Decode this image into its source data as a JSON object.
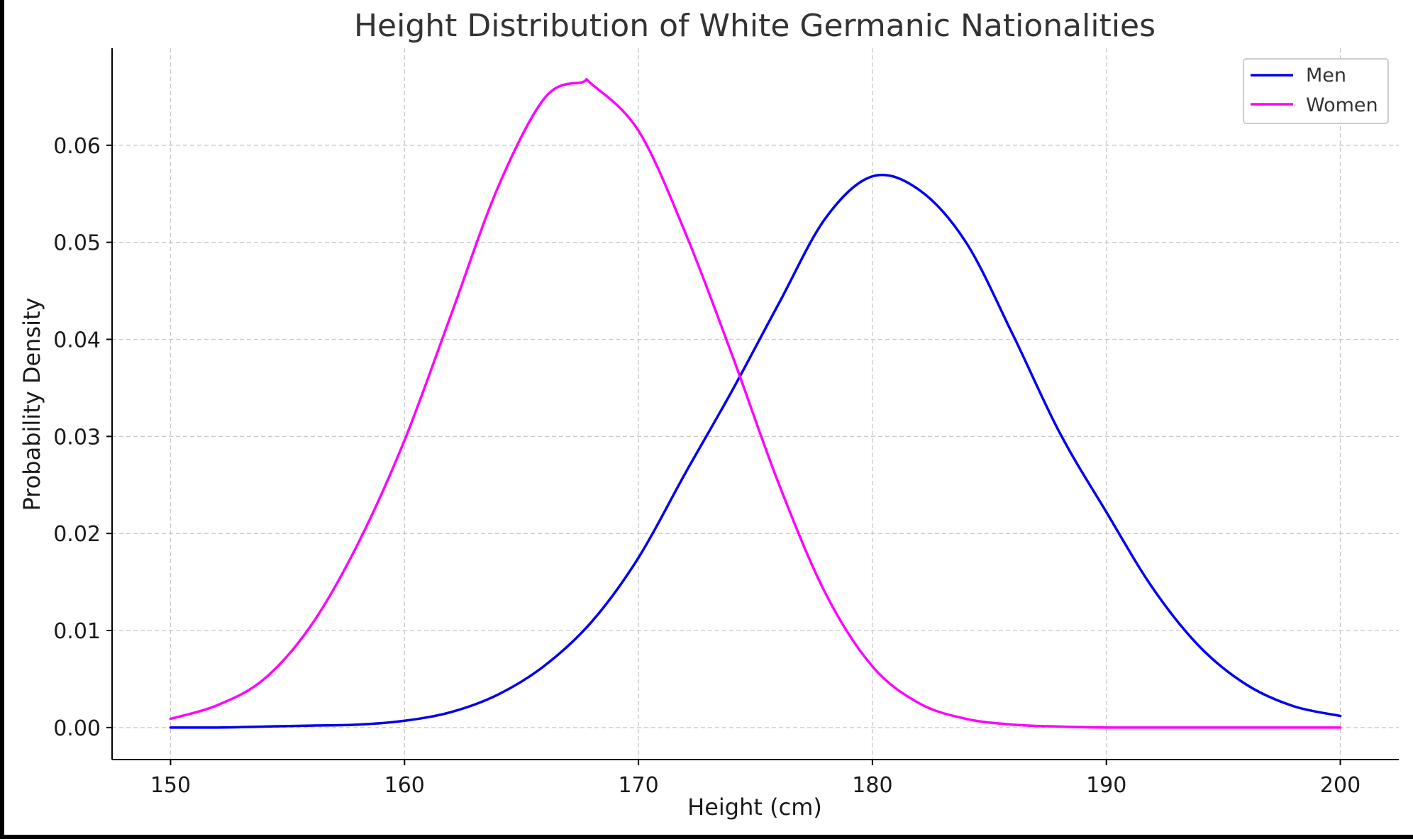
{
  "chart_data": {
    "type": "line",
    "title": "Height Distribution of White Germanic Nationalities",
    "xlabel": "Height (cm)",
    "ylabel": "Probability Density",
    "xlim": [
      147.5,
      202.5
    ],
    "ylim": [
      -0.0033,
      0.07
    ],
    "xticks": [
      150,
      160,
      170,
      180,
      190,
      200
    ],
    "xtick_labels": [
      "150",
      "160",
      "170",
      "180",
      "190",
      "200"
    ],
    "yticks": [
      0.0,
      0.01,
      0.02,
      0.03,
      0.04,
      0.05,
      0.06
    ],
    "ytick_labels": [
      "0.00",
      "0.01",
      "0.02",
      "0.03",
      "0.04",
      "0.05",
      "0.06"
    ],
    "grid": true,
    "legend_position": "top-right",
    "series": [
      {
        "name": "Men",
        "color": "#0000ee",
        "x": [
          150,
          152,
          154,
          156,
          158,
          160,
          162,
          164,
          166,
          168,
          170,
          172,
          174,
          176,
          178,
          180,
          182,
          184,
          186,
          188,
          190,
          192,
          194,
          196,
          198,
          200
        ],
        "y": [
          0.0,
          0.0,
          0.0001,
          0.0002,
          0.0003,
          0.0007,
          0.0016,
          0.0034,
          0.0064,
          0.0109,
          0.0175,
          0.0262,
          0.0347,
          0.0437,
          0.0525,
          0.0568,
          0.0554,
          0.05,
          0.0405,
          0.0304,
          0.0222,
          0.0143,
          0.0083,
          0.0044,
          0.0022,
          0.0012
        ]
      },
      {
        "name": "Women",
        "color": "#ff00ff",
        "x": [
          150,
          152,
          154,
          156,
          158,
          160,
          162,
          164,
          166,
          167.6,
          168,
          170,
          172,
          174,
          176,
          178,
          180,
          182,
          184,
          186,
          188,
          190,
          192,
          194,
          196,
          198,
          200
        ],
        "y": [
          0.0009,
          0.0023,
          0.005,
          0.0105,
          0.0189,
          0.0296,
          0.0426,
          0.0557,
          0.0649,
          0.0665,
          0.0663,
          0.0615,
          0.051,
          0.0384,
          0.0251,
          0.0138,
          0.0063,
          0.0025,
          0.0009,
          0.0003,
          0.0001,
          0.0,
          0.0,
          0.0,
          0.0,
          0.0,
          0.0
        ]
      }
    ]
  }
}
